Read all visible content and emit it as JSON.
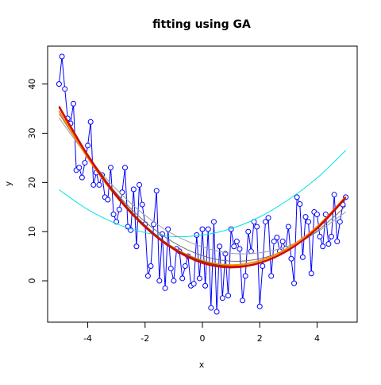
{
  "chart_data": {
    "type": "line",
    "title": "fitting using GA",
    "x_label": "x",
    "y_label": "y",
    "xlim": [
      -5.4,
      5.4
    ],
    "ylim": [
      -8.4,
      47.7
    ],
    "xticks": [
      -4,
      -2,
      0,
      2,
      4
    ],
    "yticks": [
      0,
      10,
      20,
      30,
      40
    ],
    "series": [
      {
        "color": "#0000ff",
        "markers": true,
        "x": [
          -5,
          -4.9,
          -4.8,
          -4.7,
          -4.6,
          -4.5,
          -4.4,
          -4.3,
          -4.2,
          -4.1,
          -4,
          -3.9,
          -3.8,
          -3.7,
          -3.6,
          -3.5,
          -3.4,
          -3.3,
          -3.2,
          -3.1,
          -3,
          -2.9,
          -2.8,
          -2.7,
          -2.6,
          -2.5,
          -2.4,
          -2.3,
          -2.2,
          -2.1,
          -2,
          -1.9,
          -1.8,
          -1.7,
          -1.6,
          -1.5,
          -1.4,
          -1.3,
          -1.2,
          -1.1,
          -1,
          -0.9,
          -0.8,
          -0.7,
          -0.6,
          -0.5,
          -0.4,
          -0.3,
          -0.2,
          -0.1,
          0,
          0.1,
          0.2,
          0.3,
          0.4,
          0.5,
          0.6,
          0.7,
          0.8,
          0.9,
          1,
          1.1,
          1.2,
          1.3,
          1.4,
          1.5,
          1.6,
          1.7,
          1.8,
          1.9,
          2,
          2.1,
          2.2,
          2.3,
          2.4,
          2.5,
          2.6,
          2.7,
          2.8,
          2.9,
          3,
          3.1,
          3.2,
          3.3,
          3.4,
          3.5,
          3.6,
          3.7,
          3.8,
          3.9,
          4,
          4.1,
          4.2,
          4.3,
          4.4,
          4.5,
          4.6,
          4.7,
          4.8,
          4.9,
          5
        ],
        "values": [
          40,
          45.6,
          39,
          33,
          32,
          36,
          22.5,
          23,
          21,
          24,
          27.5,
          32.3,
          19.5,
          22,
          19.5,
          21.5,
          17,
          16.5,
          23,
          13.5,
          12,
          14.5,
          18,
          23,
          11,
          10.3,
          18.6,
          7,
          19.5,
          15.5,
          11.5,
          1,
          3,
          11.5,
          18.3,
          0,
          9.5,
          -1.5,
          10.5,
          2.5,
          0,
          6.5,
          6,
          0.5,
          3,
          5,
          -1,
          -0.6,
          9.3,
          0.5,
          10.5,
          -1,
          10.5,
          -5.5,
          12,
          -6.3,
          7,
          -3.5,
          5.5,
          -3,
          10.5,
          7,
          8,
          6.5,
          -4,
          1,
          10,
          6,
          12,
          11,
          -5.2,
          3,
          12,
          12.8,
          1,
          8,
          8.8,
          6,
          8,
          6.5,
          11,
          4.5,
          -0.5,
          17,
          15.6,
          4.8,
          13,
          12,
          1.5,
          14,
          13.5,
          9,
          7,
          13.5,
          7.5,
          9,
          17.5,
          8,
          12,
          15.5,
          17
        ]
      },
      {
        "color": "#00e5e5",
        "x": [
          -5,
          -4,
          -3,
          -2,
          -1,
          0,
          1,
          2,
          3,
          4,
          5
        ],
        "values": [
          18.5,
          14.5,
          11.6,
          9.8,
          9.0,
          9.3,
          10.6,
          13.0,
          16.5,
          20.9,
          26.5
        ]
      },
      {
        "color": "#a0a0a0",
        "x": [
          -5,
          -4,
          -3,
          -2,
          -1,
          0,
          1,
          2,
          3,
          4,
          5
        ],
        "values": [
          33.1,
          25.2,
          18.6,
          13.3,
          9.4,
          6.9,
          5.6,
          5.7,
          7.1,
          9.9,
          14.0
        ]
      },
      {
        "color": "#707070",
        "x": [
          -5,
          -4,
          -3,
          -2,
          -1,
          0,
          1,
          2,
          3,
          4,
          5
        ],
        "values": [
          34.0,
          25.1,
          17.8,
          12.0,
          7.8,
          5.1,
          4.0,
          4.5,
          6.5,
          10.1,
          15.2
        ]
      },
      {
        "color": "#ff8c00",
        "x": [
          -5,
          -4,
          -3,
          -2,
          -1,
          0,
          1,
          2,
          3,
          4,
          5
        ],
        "values": [
          34.5,
          25.0,
          17.1,
          11.0,
          6.7,
          4.1,
          3.2,
          4.1,
          6.7,
          11.0,
          17.1
        ]
      },
      {
        "color": "#8b3a1a",
        "x": [
          -5,
          -4,
          -3,
          -2,
          -1,
          0,
          1,
          2,
          3,
          4,
          5
        ],
        "values": [
          35.5,
          25.6,
          17.5,
          11.2,
          6.6,
          3.9,
          2.9,
          3.7,
          6.3,
          10.6,
          16.8
        ]
      },
      {
        "color": "#e00000",
        "x": [
          -5,
          -4,
          -3,
          -2,
          -1,
          0,
          1,
          2,
          3,
          4,
          5
        ],
        "values": [
          35.3,
          25.4,
          17.2,
          10.9,
          6.4,
          3.6,
          2.7,
          3.6,
          6.2,
          10.7,
          17.0
        ]
      }
    ]
  }
}
